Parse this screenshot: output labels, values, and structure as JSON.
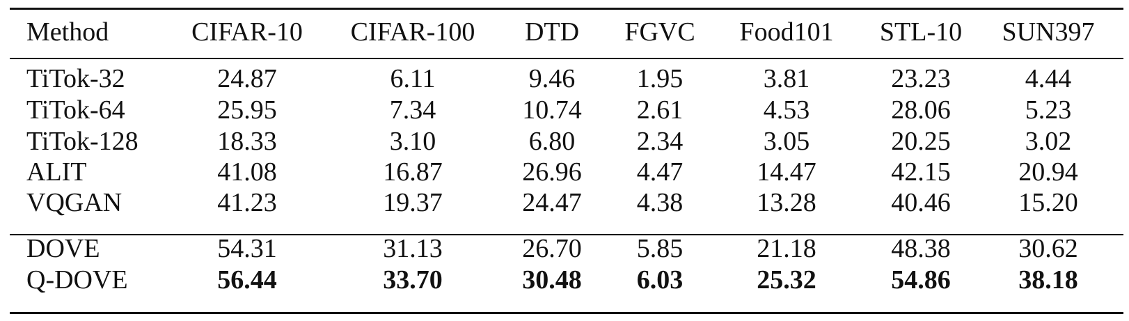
{
  "table": {
    "headers": [
      "Method",
      "CIFAR-10",
      "CIFAR-100",
      "DTD",
      "FGVC",
      "Food101",
      "STL-10",
      "SUN397"
    ],
    "group1": [
      [
        "TiTok-32",
        "24.87",
        "6.11",
        "9.46",
        "1.95",
        "3.81",
        "23.23",
        "4.44"
      ],
      [
        "TiTok-64",
        "25.95",
        "7.34",
        "10.74",
        "2.61",
        "4.53",
        "28.06",
        "5.23"
      ],
      [
        "TiTok-128",
        "18.33",
        "3.10",
        "6.80",
        "2.34",
        "3.05",
        "20.25",
        "3.02"
      ],
      [
        "ALIT",
        "41.08",
        "16.87",
        "26.96",
        "4.47",
        "14.47",
        "42.15",
        "20.94"
      ],
      [
        "VQGAN",
        "41.23",
        "19.37",
        "24.47",
        "4.38",
        "13.28",
        "40.46",
        "15.20"
      ]
    ],
    "group2": [
      [
        "DOVE",
        "54.31",
        "31.13",
        "26.70",
        "5.85",
        "21.18",
        "48.38",
        "30.62"
      ],
      [
        "Q-DOVE",
        "56.44",
        "33.70",
        "30.48",
        "6.03",
        "25.32",
        "54.86",
        "38.18"
      ]
    ],
    "bold_row": "Q-DOVE"
  }
}
